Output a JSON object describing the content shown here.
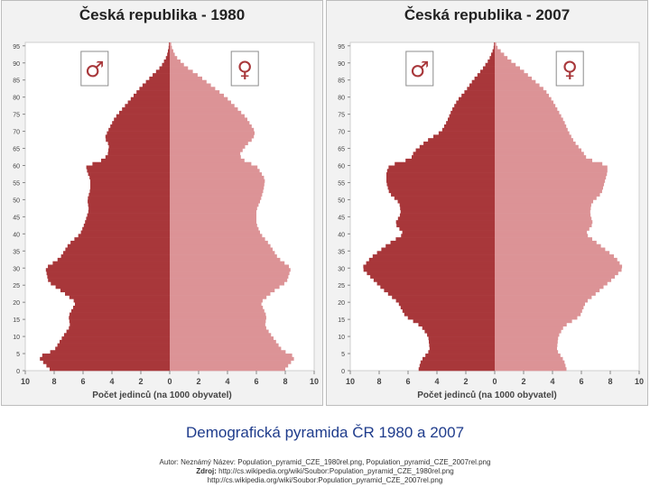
{
  "chart_data": [
    {
      "type": "population-pyramid",
      "title": "Česká republika - 1980",
      "xlabel": "Počet jedinců (na 1000 obyvatel)",
      "xlim": [
        -10,
        10
      ],
      "xticks": [
        "10",
        "8",
        "6",
        "4",
        "2",
        "0",
        "2",
        "4",
        "6",
        "8",
        "10"
      ],
      "ylim": [
        0,
        96
      ],
      "yticks": [
        "0",
        "5",
        "10",
        "15",
        "20",
        "25",
        "30",
        "35",
        "40",
        "45",
        "50",
        "55",
        "60",
        "65",
        "70",
        "75",
        "80",
        "85",
        "90",
        "95"
      ],
      "legend": [
        "♂",
        "♀"
      ],
      "colors": {
        "male": "#a8373a",
        "female": "#dc9396"
      },
      "male_keys": [
        [
          0,
          8.2
        ],
        [
          4,
          9.1
        ],
        [
          6,
          8.0
        ],
        [
          10,
          7.4
        ],
        [
          13,
          6.9
        ],
        [
          16,
          7.0
        ],
        [
          20,
          6.5
        ],
        [
          23,
          7.4
        ],
        [
          26,
          8.4
        ],
        [
          30,
          8.6
        ],
        [
          33,
          7.6
        ],
        [
          37,
          7.0
        ],
        [
          40,
          6.2
        ],
        [
          43,
          5.9
        ],
        [
          47,
          5.6
        ],
        [
          50,
          5.7
        ],
        [
          53,
          5.5
        ],
        [
          56,
          5.5
        ],
        [
          58,
          5.7
        ],
        [
          60,
          5.8
        ],
        [
          61,
          4.9
        ],
        [
          63,
          4.3
        ],
        [
          66,
          4.2
        ],
        [
          68,
          4.5
        ],
        [
          70,
          4.3
        ],
        [
          74,
          3.8
        ],
        [
          77,
          3.2
        ],
        [
          80,
          2.6
        ],
        [
          83,
          2.0
        ],
        [
          86,
          1.3
        ],
        [
          89,
          0.6
        ],
        [
          92,
          0.2
        ],
        [
          95,
          0.05
        ]
      ],
      "female_keys": [
        [
          0,
          7.9
        ],
        [
          4,
          8.7
        ],
        [
          6,
          7.8
        ],
        [
          10,
          7.1
        ],
        [
          13,
          6.6
        ],
        [
          16,
          6.7
        ],
        [
          20,
          6.3
        ],
        [
          23,
          7.1
        ],
        [
          26,
          8.1
        ],
        [
          30,
          8.4
        ],
        [
          33,
          7.5
        ],
        [
          37,
          6.9
        ],
        [
          40,
          6.3
        ],
        [
          43,
          6.0
        ],
        [
          47,
          6.0
        ],
        [
          50,
          6.3
        ],
        [
          53,
          6.5
        ],
        [
          56,
          6.6
        ],
        [
          58,
          6.3
        ],
        [
          60,
          6.0
        ],
        [
          61,
          5.3
        ],
        [
          63,
          4.8
        ],
        [
          66,
          5.3
        ],
        [
          68,
          5.8
        ],
        [
          70,
          5.9
        ],
        [
          74,
          5.3
        ],
        [
          77,
          4.6
        ],
        [
          80,
          3.9
        ],
        [
          83,
          3.0
        ],
        [
          86,
          2.1
        ],
        [
          89,
          1.1
        ],
        [
          92,
          0.4
        ],
        [
          95,
          0.1
        ]
      ]
    },
    {
      "type": "population-pyramid",
      "title": "Česká republika - 2007",
      "xlabel": "Počet jedinců (na 1000 obyvatel)",
      "xlim": [
        -10,
        10
      ],
      "xticks": [
        "10",
        "8",
        "6",
        "4",
        "2",
        "0",
        "2",
        "4",
        "6",
        "8",
        "10"
      ],
      "ylim": [
        0,
        96
      ],
      "yticks": [
        "0",
        "5",
        "10",
        "15",
        "20",
        "25",
        "30",
        "35",
        "40",
        "45",
        "50",
        "55",
        "60",
        "65",
        "70",
        "75",
        "80",
        "85",
        "90",
        "95"
      ],
      "legend": [
        "♂",
        "♀"
      ],
      "colors": {
        "male": "#a8373a",
        "female": "#dc9396"
      },
      "male_keys": [
        [
          0,
          5.3
        ],
        [
          3,
          5.1
        ],
        [
          6,
          4.5
        ],
        [
          10,
          4.6
        ],
        [
          13,
          5.1
        ],
        [
          16,
          6.2
        ],
        [
          20,
          6.7
        ],
        [
          24,
          7.8
        ],
        [
          27,
          8.5
        ],
        [
          30,
          9.2
        ],
        [
          33,
          8.6
        ],
        [
          37,
          7.4
        ],
        [
          40,
          6.3
        ],
        [
          43,
          6.9
        ],
        [
          46,
          6.5
        ],
        [
          49,
          6.6
        ],
        [
          52,
          7.3
        ],
        [
          55,
          7.5
        ],
        [
          58,
          7.5
        ],
        [
          60,
          7.3
        ],
        [
          62,
          5.8
        ],
        [
          64,
          5.6
        ],
        [
          67,
          4.8
        ],
        [
          70,
          3.7
        ],
        [
          73,
          3.3
        ],
        [
          76,
          3.0
        ],
        [
          79,
          2.6
        ],
        [
          82,
          2.0
        ],
        [
          85,
          1.5
        ],
        [
          88,
          0.9
        ],
        [
          91,
          0.4
        ],
        [
          94,
          0.1
        ],
        [
          95,
          0.05
        ]
      ],
      "female_keys": [
        [
          0,
          5.0
        ],
        [
          3,
          4.8
        ],
        [
          6,
          4.3
        ],
        [
          10,
          4.4
        ],
        [
          13,
          4.8
        ],
        [
          16,
          5.9
        ],
        [
          20,
          6.3
        ],
        [
          24,
          7.4
        ],
        [
          27,
          8.2
        ],
        [
          30,
          8.9
        ],
        [
          33,
          8.4
        ],
        [
          37,
          7.2
        ],
        [
          40,
          6.3
        ],
        [
          43,
          6.8
        ],
        [
          46,
          6.6
        ],
        [
          49,
          6.7
        ],
        [
          52,
          7.4
        ],
        [
          55,
          7.6
        ],
        [
          58,
          7.8
        ],
        [
          60,
          7.8
        ],
        [
          62,
          6.4
        ],
        [
          64,
          6.1
        ],
        [
          67,
          5.5
        ],
        [
          70,
          5.1
        ],
        [
          73,
          4.8
        ],
        [
          76,
          4.4
        ],
        [
          79,
          4.0
        ],
        [
          82,
          3.5
        ],
        [
          85,
          2.7
        ],
        [
          88,
          1.9
        ],
        [
          91,
          1.0
        ],
        [
          94,
          0.3
        ],
        [
          95,
          0.1
        ]
      ]
    }
  ],
  "caption": "Demografická pyramida ČR 1980 a 2007",
  "credits": {
    "author_line": "Autor: Neznámý Název: Population_pyramid_CZE_1980rel.png, Population_pyramid_CZE_2007rel.png",
    "source_label": "Zdroj:",
    "source_url_1": "http://cs.wikipedia.org/wiki/Soubor:Population_pyramid_CZE_1980rel.png",
    "source_url_2": "http://cs.wikipedia.org/wiki/Soubor:Population_pyramid_CZE_2007rel.png"
  }
}
